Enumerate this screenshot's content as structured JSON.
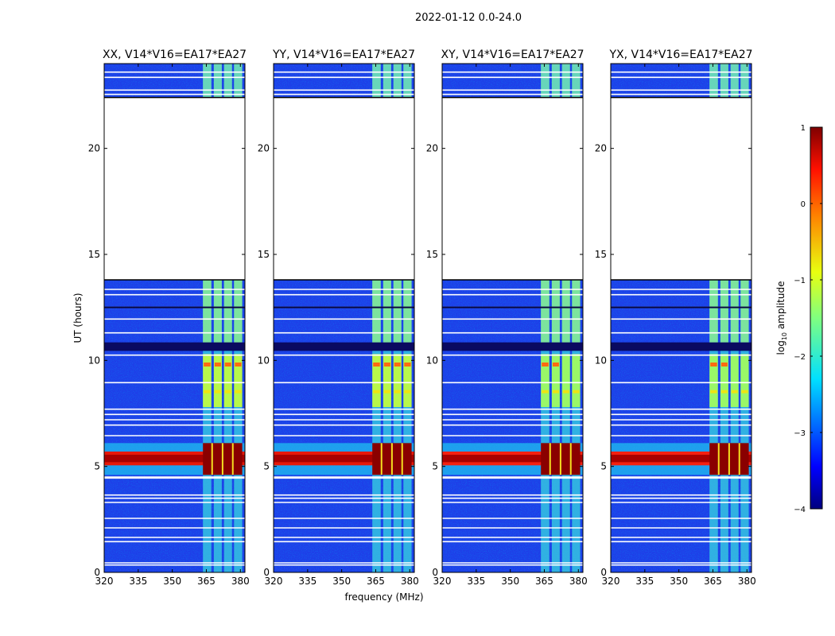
{
  "figure_title": "2022-01-12 0.0-24.0",
  "chart_data": {
    "type": "heatmap",
    "shared_xlabel": "frequency (MHz)",
    "shared_ylabel": "UT (hours)",
    "xlim": [
      320,
      382
    ],
    "ylim": [
      0,
      24
    ],
    "xticks": [
      320,
      335,
      350,
      365,
      380
    ],
    "yticks": [
      0,
      5,
      10,
      15,
      20
    ],
    "panels": [
      {
        "title": "XX, V14*V16=EA17*EA27",
        "cross_hand": false
      },
      {
        "title": "YY, V14*V16=EA17*EA27",
        "cross_hand": false
      },
      {
        "title": "XY, V14*V16=EA17*EA27",
        "cross_hand": true
      },
      {
        "title": "YX, V14*V16=EA17*EA27",
        "cross_hand": true
      }
    ],
    "data_gaps_hours": [
      [
        13.8,
        22.4
      ]
    ],
    "flagged_rows_hours": [
      0.35,
      0.45,
      1.45,
      1.65,
      2.1,
      2.55,
      3.3,
      3.5,
      3.65,
      4.45,
      4.5,
      6.45,
      6.95,
      7.2,
      7.45,
      7.7,
      8.95,
      10.25,
      10.55,
      10.65,
      10.75,
      11.3,
      11.95,
      12.5,
      13.1,
      13.35,
      22.55,
      22.75,
      23.35,
      23.6
    ],
    "bright_channel_bands_mhz": [
      [
        363.5,
        367.2
      ],
      [
        368.3,
        371.8
      ],
      [
        372.8,
        376.3
      ],
      [
        377.2,
        380.8
      ]
    ],
    "strong_rfi_event_hours": [
      4.6,
      6.1
    ],
    "colorbar": {
      "label": "log10 amplitude",
      "label_base": "log",
      "label_subscript": "10",
      "label_rest": " amplitude",
      "min": -4,
      "max": 1,
      "ticks": [
        1,
        0,
        -1,
        -2,
        -3,
        -4
      ],
      "tick_labels": [
        "1",
        "0",
        "−1",
        "−2",
        "−3",
        "−4"
      ],
      "colormap": "jet"
    }
  }
}
